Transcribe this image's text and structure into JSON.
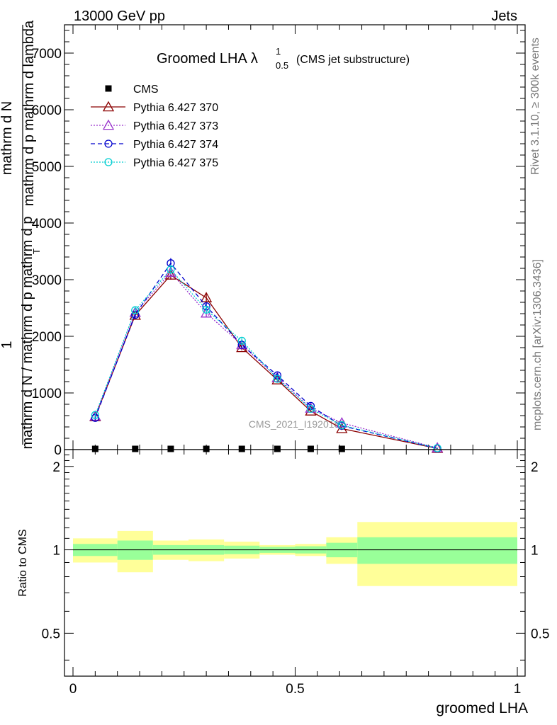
{
  "header": {
    "energy_label": "13000 GeV pp",
    "category_label": "Jets"
  },
  "side_labels": {
    "rivet": "Rivet 3.1.10, ≥ 300k events",
    "mcplots": "mcplots.cern.ch [arXiv:1306.3436]"
  },
  "watermark": "CMS_2021_I1920187",
  "chart_data": [
    {
      "type": "line",
      "title_main": "Groomed LHA",
      "title_symbol": "λ",
      "title_sup": "1",
      "title_sub": "0.5",
      "title_note": "(CMS jet substructure)",
      "xlabel": "groomed LHA",
      "ylabel_numerator": "1",
      "ylabel_denominator": "mathrm d N / mathrm d p mathrm d p",
      "ylabel_top": "mathrm d N",
      "ylabel_bottom": "mathrm d p mathrm d lambda",
      "ylabel_tsub": "T",
      "xlim": [
        0,
        1
      ],
      "ylim": [
        0,
        7500
      ],
      "yticks": [
        0,
        1000,
        2000,
        3000,
        4000,
        5000,
        6000,
        7000
      ],
      "ytick_labels": [
        "0",
        "1000",
        "2000",
        "3000",
        "4000",
        "5000",
        "6000",
        "7000"
      ],
      "legend_position": "top-left",
      "series": [
        {
          "name": "CMS",
          "color": "#000000",
          "marker": "square",
          "x": [
            0.05,
            0.14,
            0.22,
            0.3,
            0.38,
            0.46,
            0.535,
            0.605
          ],
          "y": [
            0,
            0,
            0,
            0,
            0,
            0,
            0,
            0
          ]
        },
        {
          "name": "Pythia 6.427 370",
          "color": "#8b0000",
          "marker": "triangle",
          "dash": "solid",
          "x": [
            0.05,
            0.14,
            0.22,
            0.3,
            0.38,
            0.46,
            0.535,
            0.605,
            0.82
          ],
          "y": [
            580,
            2370,
            3080,
            2680,
            1800,
            1230,
            680,
            370,
            20
          ],
          "err": [
            40,
            60,
            80,
            70,
            50,
            40,
            30,
            25,
            5
          ]
        },
        {
          "name": "Pythia 6.427 373",
          "color": "#9932cc",
          "marker": "triangle",
          "dash": "dotted",
          "x": [
            0.05,
            0.14,
            0.22,
            0.3,
            0.38,
            0.46,
            0.535,
            0.605,
            0.82
          ],
          "y": [
            590,
            2420,
            3130,
            2410,
            1850,
            1270,
            730,
            470,
            30
          ],
          "err": [
            40,
            60,
            80,
            70,
            50,
            40,
            30,
            25,
            5
          ]
        },
        {
          "name": "Pythia 6.427 374",
          "color": "#0000cd",
          "marker": "circle",
          "dash": "dashed",
          "x": [
            0.05,
            0.14,
            0.22,
            0.3,
            0.38,
            0.46,
            0.535,
            0.605,
            0.82
          ],
          "y": [
            560,
            2380,
            3290,
            2530,
            1850,
            1310,
            770,
            420,
            20
          ],
          "err": [
            40,
            60,
            90,
            70,
            50,
            40,
            30,
            25,
            5
          ]
        },
        {
          "name": "Pythia 6.427 375",
          "color": "#00ced1",
          "marker": "circle",
          "dash": "dotted",
          "x": [
            0.05,
            0.14,
            0.22,
            0.3,
            0.38,
            0.46,
            0.535,
            0.605,
            0.82
          ],
          "y": [
            610,
            2460,
            3180,
            2470,
            1920,
            1250,
            720,
            430,
            25
          ],
          "err": [
            40,
            60,
            80,
            70,
            50,
            40,
            30,
            25,
            5
          ]
        }
      ]
    },
    {
      "type": "area",
      "ylabel": "Ratio to CMS",
      "xlim": [
        0,
        1
      ],
      "ylim": [
        0.35,
        2.3
      ],
      "yticks": [
        0.5,
        1,
        2
      ],
      "ytick_labels": [
        "0.5",
        "1",
        "2"
      ],
      "xticks": [
        0,
        0.5,
        1
      ],
      "xtick_labels": [
        "0",
        "0.5",
        "1"
      ],
      "reference": 1,
      "bands": {
        "bins": [
          [
            0,
            0.1
          ],
          [
            0.1,
            0.18
          ],
          [
            0.18,
            0.26
          ],
          [
            0.26,
            0.34
          ],
          [
            0.34,
            0.42
          ],
          [
            0.42,
            0.5
          ],
          [
            0.5,
            0.57
          ],
          [
            0.57,
            0.64
          ],
          [
            0.64,
            1.0
          ]
        ],
        "inner": [
          [
            0.95,
            1.05
          ],
          [
            0.92,
            1.08
          ],
          [
            0.96,
            1.04
          ],
          [
            0.96,
            1.04
          ],
          [
            0.965,
            1.035
          ],
          [
            0.975,
            1.025
          ],
          [
            0.97,
            1.03
          ],
          [
            0.94,
            1.06
          ],
          [
            0.89,
            1.11
          ]
        ],
        "outer": [
          [
            0.9,
            1.1
          ],
          [
            0.83,
            1.17
          ],
          [
            0.92,
            1.08
          ],
          [
            0.91,
            1.09
          ],
          [
            0.93,
            1.07
          ],
          [
            0.96,
            1.04
          ],
          [
            0.95,
            1.05
          ],
          [
            0.89,
            1.11
          ],
          [
            0.74,
            1.26
          ]
        ],
        "inner_color": "#99ff99",
        "outer_color": "#ffff99"
      }
    }
  ]
}
